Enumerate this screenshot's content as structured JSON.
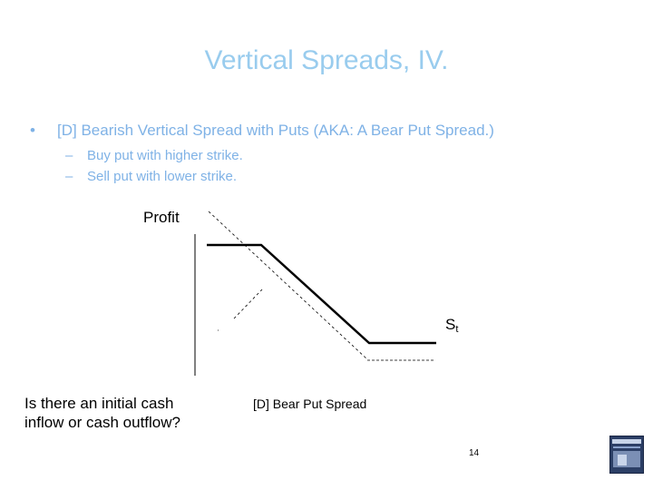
{
  "slide": {
    "title": "Vertical Spreads, IV.",
    "bullet": {
      "symbol": "•",
      "text": "[D] Bearish Vertical Spread with Puts (AKA: A Bear Put Spread.)"
    },
    "sub_bullets": [
      {
        "dash": "–",
        "text": "Buy put with higher strike."
      },
      {
        "dash": "–",
        "text": "Sell put with lower strike."
      }
    ],
    "diagram": {
      "y_label": "Profit",
      "x_label_main": "S",
      "x_label_sub": "t",
      "caption": "[D] Bear Put Spread"
    },
    "question": {
      "line1": "Is there an initial cash",
      "line2": "inflow or cash outflow?"
    },
    "page_number": "14"
  },
  "colors": {
    "title": "#99ccee",
    "bullet_text": "#7fb2e6",
    "payoff_line": "#000000",
    "dashed_line": "#000000"
  }
}
